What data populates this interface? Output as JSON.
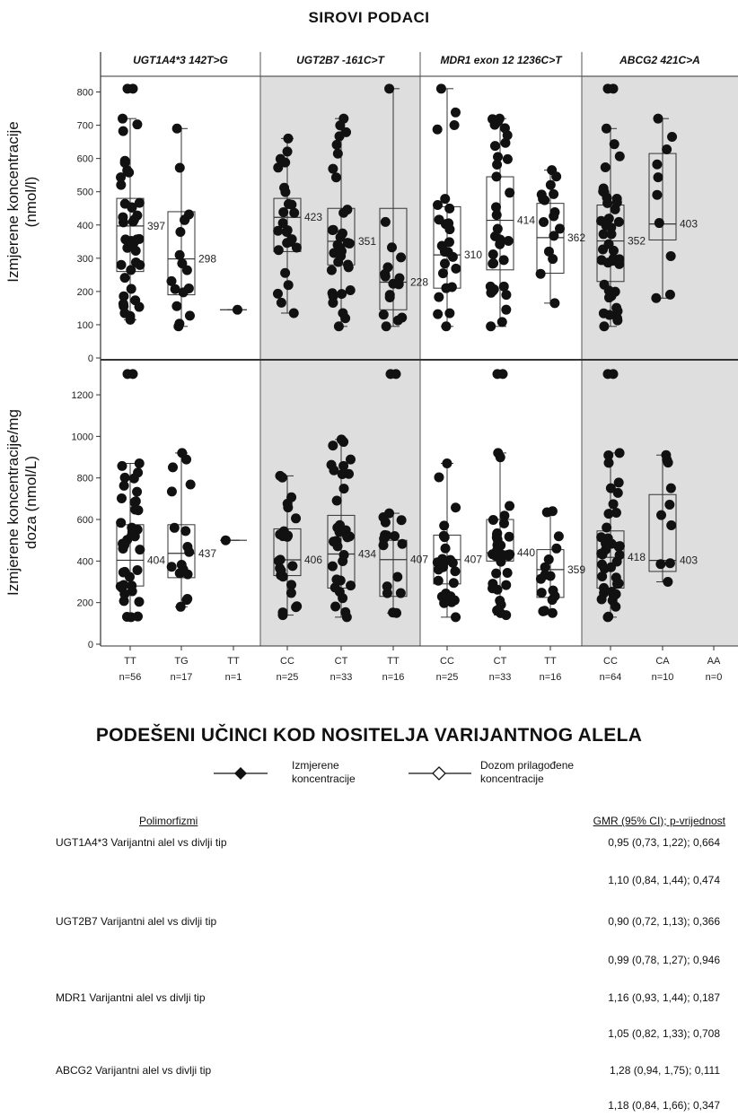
{
  "title": "SIROVI PODACI",
  "facets": [
    {
      "label": "UGT1A4*3 142T>G"
    },
    {
      "label": "UGT2B7 -161C>T"
    },
    {
      "label": "MDR1 exon 12 1236C>T"
    },
    {
      "label": "ABCG2 421C>A"
    }
  ],
  "ylabel_top_line1": "Izmjerene koncentracije",
  "ylabel_top_line2": "(nmol/l)",
  "ylabel_bottom_line1": "Izmjerene koncentracije/mg",
  "ylabel_bottom_line2": "doza (nmol/L)",
  "shaded_color": "#dedede",
  "chart_data": [
    {
      "type": "box-scatter",
      "panel": "top",
      "y_ticks": [
        0,
        100,
        200,
        300,
        400,
        500,
        600,
        700,
        800
      ],
      "ylim": [
        0,
        850
      ],
      "groups": [
        {
          "facet": 0,
          "genotype": "TT",
          "n": "n=56",
          "median": 397,
          "q1": 260,
          "q3": 480,
          "min": 115,
          "max": 720,
          "outlier_max": 810,
          "label": "397"
        },
        {
          "facet": 0,
          "genotype": "TG",
          "n": "n=17",
          "median": 298,
          "q1": 190,
          "q3": 440,
          "min": 95,
          "max": 690,
          "label": "298"
        },
        {
          "facet": 0,
          "genotype": "TT",
          "n": "n=1",
          "median": 145,
          "q1": 145,
          "q3": 145,
          "min": 145,
          "max": 145,
          "label": ""
        },
        {
          "facet": 1,
          "genotype": "CC",
          "n": "n=25",
          "median": 423,
          "q1": 320,
          "q3": 480,
          "min": 135,
          "max": 660,
          "label": "423"
        },
        {
          "facet": 1,
          "genotype": "CT",
          "n": "n=33",
          "median": 351,
          "q1": 280,
          "q3": 450,
          "min": 95,
          "max": 720,
          "label": "351"
        },
        {
          "facet": 1,
          "genotype": "TT",
          "n": "n=16",
          "median": 228,
          "q1": 145,
          "q3": 450,
          "min": 95,
          "max": 810,
          "label": "228"
        },
        {
          "facet": 2,
          "genotype": "CC",
          "n": "n=25",
          "median": 310,
          "q1": 210,
          "q3": 455,
          "min": 95,
          "max": 810,
          "label": "310"
        },
        {
          "facet": 2,
          "genotype": "CT",
          "n": "n=33",
          "median": 414,
          "q1": 265,
          "q3": 545,
          "min": 95,
          "max": 720,
          "label": "414"
        },
        {
          "facet": 2,
          "genotype": "TT",
          "n": "n=16",
          "median": 362,
          "q1": 255,
          "q3": 465,
          "min": 165,
          "max": 565,
          "label": "362"
        },
        {
          "facet": 3,
          "genotype": "CC",
          "n": "n=64",
          "median": 352,
          "q1": 230,
          "q3": 460,
          "min": 95,
          "max": 690,
          "outlier_max": 810,
          "label": "352"
        },
        {
          "facet": 3,
          "genotype": "CA",
          "n": "n=10",
          "median": 403,
          "q1": 355,
          "q3": 615,
          "min": 180,
          "max": 720,
          "label": "403"
        },
        {
          "facet": 3,
          "genotype": "AA",
          "n": "n=0",
          "label": ""
        }
      ]
    },
    {
      "type": "box-scatter",
      "panel": "bottom",
      "y_ticks": [
        0,
        200,
        400,
        600,
        800,
        1000,
        1200
      ],
      "ylim": [
        0,
        1360
      ],
      "groups": [
        {
          "facet": 0,
          "genotype": "TT",
          "n": "n=56",
          "median": 404,
          "q1": 280,
          "q3": 575,
          "min": 130,
          "max": 870,
          "outlier_max": 1300,
          "label": "404"
        },
        {
          "facet": 0,
          "genotype": "TG",
          "n": "n=17",
          "median": 437,
          "q1": 320,
          "q3": 575,
          "min": 180,
          "max": 920,
          "label": "437"
        },
        {
          "facet": 0,
          "genotype": "TT",
          "n": "n=1",
          "median": 500,
          "q1": 500,
          "q3": 500,
          "min": 500,
          "max": 500,
          "label": ""
        },
        {
          "facet": 1,
          "genotype": "CC",
          "n": "n=25",
          "median": 406,
          "q1": 330,
          "q3": 555,
          "min": 140,
          "max": 810,
          "label": "406"
        },
        {
          "facet": 1,
          "genotype": "CT",
          "n": "n=33",
          "median": 434,
          "q1": 270,
          "q3": 620,
          "min": 130,
          "max": 985,
          "label": "434"
        },
        {
          "facet": 1,
          "genotype": "TT",
          "n": "n=16",
          "median": 407,
          "q1": 230,
          "q3": 500,
          "min": 150,
          "max": 630,
          "outlier_max": 1300,
          "label": "407"
        },
        {
          "facet": 2,
          "genotype": "CC",
          "n": "n=25",
          "median": 407,
          "q1": 290,
          "q3": 525,
          "min": 130,
          "max": 870,
          "label": "407"
        },
        {
          "facet": 2,
          "genotype": "CT",
          "n": "n=33",
          "median": 440,
          "q1": 400,
          "q3": 600,
          "min": 140,
          "max": 920,
          "outlier_max": 1300,
          "label": "440"
        },
        {
          "facet": 2,
          "genotype": "TT",
          "n": "n=16",
          "median": 359,
          "q1": 225,
          "q3": 455,
          "min": 150,
          "max": 640,
          "label": "359"
        },
        {
          "facet": 3,
          "genotype": "CC",
          "n": "n=64",
          "median": 418,
          "q1": 270,
          "q3": 545,
          "min": 130,
          "max": 920,
          "outlier_max": 1300,
          "label": "418"
        },
        {
          "facet": 3,
          "genotype": "CA",
          "n": "n=10",
          "median": 403,
          "q1": 350,
          "q3": 720,
          "min": 300,
          "max": 910,
          "label": "403"
        },
        {
          "facet": 3,
          "genotype": "AA",
          "n": "n=0",
          "label": ""
        }
      ]
    }
  ],
  "section2": {
    "title": "PODEŠENI UČINCI KOD NOSITELJA VARIJANTNOG ALELA",
    "legend": [
      {
        "marker": "filled-diamond",
        "line1": "Izmjerene",
        "line2": "koncentracije"
      },
      {
        "marker": "open-diamond",
        "line1": "Dozom prilagođene",
        "line2": "koncentracije"
      }
    ],
    "header_left": "Polimorfizmi",
    "header_right": "GMR (95% CI); p-vrijednost",
    "rows": [
      {
        "label": "UGT1A4*3  Varijantni alel vs divlji tip",
        "value": "0,95 (0,73, 1,22); 0,664"
      },
      {
        "label": "",
        "value": "1,10 (0,84, 1,44); 0,474"
      },
      {
        "label": "UGT2B7 Varijantni alel vs divlji tip",
        "value": "0,90 (0,72, 1,13); 0,366"
      },
      {
        "label": "",
        "value": "0,99 (0,78, 1,27); 0,946"
      },
      {
        "label": "MDR1 Varijantni alel vs divlji tip",
        "value": "1,16 (0,93, 1,44); 0,187"
      },
      {
        "label": "",
        "value": "1,05 (0,82, 1,33); 0,708"
      },
      {
        "label": "ABCG2 Varijantni alel vs divlji tip",
        "value": "1,28 (0,94, 1,75); 0,111"
      },
      {
        "label": "",
        "value": "1,18 (0,84, 1,66); 0,347"
      }
    ]
  }
}
